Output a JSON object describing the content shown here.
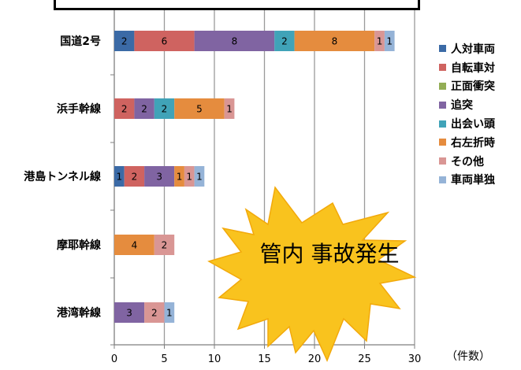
{
  "chart_data": {
    "type": "bar",
    "orientation": "horizontal",
    "stacked": true,
    "categories": [
      "国道2号",
      "浜手幹線",
      "港島トンネル線",
      "摩耶幹線",
      "港湾幹線"
    ],
    "series": [
      {
        "name": "人対車両",
        "color": "#3b6aa6",
        "values": [
          2,
          0,
          1,
          0,
          0
        ]
      },
      {
        "name": "自転車対",
        "color": "#cf6360",
        "values": [
          6,
          2,
          2,
          0,
          0
        ]
      },
      {
        "name": "正面衝突",
        "color": "#93ad55",
        "values": [
          0,
          0,
          0,
          0,
          0
        ]
      },
      {
        "name": "追突",
        "color": "#8064a2",
        "values": [
          8,
          2,
          3,
          0,
          3
        ]
      },
      {
        "name": "出会い頭",
        "color": "#40a3b8",
        "values": [
          2,
          2,
          0,
          0,
          0
        ]
      },
      {
        "name": "右左折時",
        "color": "#e58c3e",
        "values": [
          8,
          5,
          1,
          4,
          0
        ]
      },
      {
        "name": "その他",
        "color": "#d99694",
        "values": [
          1,
          1,
          1,
          2,
          2
        ]
      },
      {
        "name": "車両単独",
        "color": "#95b3d7",
        "values": [
          1,
          0,
          1,
          0,
          1
        ]
      }
    ],
    "x_ticks": [
      0,
      5,
      10,
      15,
      20,
      25,
      30
    ],
    "xlim": [
      0,
      30
    ],
    "xlabel": "（件数）",
    "gridlines": "vertical",
    "legend_position": "right"
  },
  "annotation": {
    "text": "管内 事故発生"
  }
}
